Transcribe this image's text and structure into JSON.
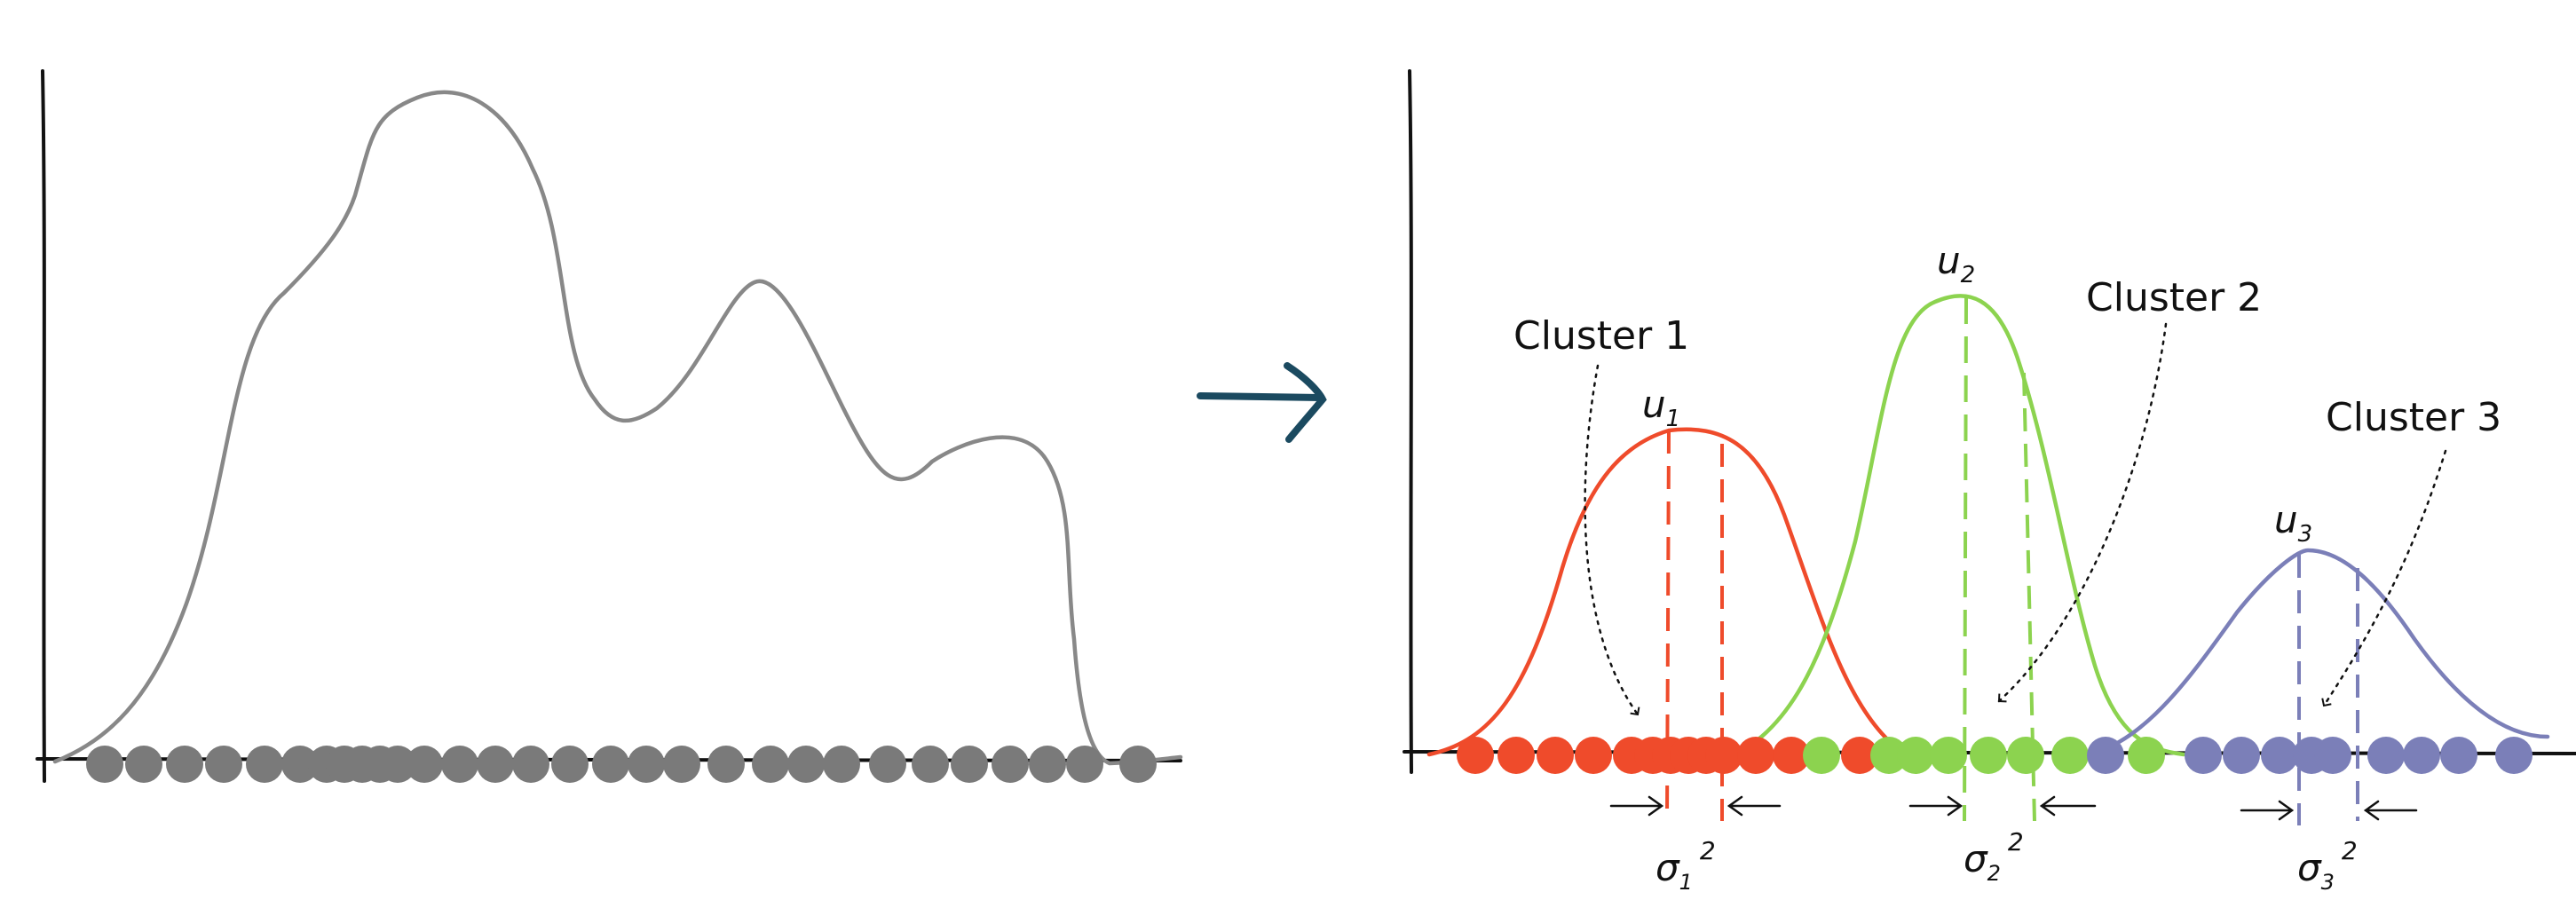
{
  "colors": {
    "axis": "#111111",
    "density": "#888888",
    "points": "#7a7a7a",
    "arrow": "#1b4a60",
    "cluster1": "#ef4b2b",
    "cluster2": "#8cd34f",
    "cluster3": "#7b7fb8"
  },
  "clusters": [
    {
      "label": "Cluster 1",
      "mean_symbol": "u",
      "mean_sub": "1",
      "var_symbol": "σ",
      "var_sub": "1",
      "var_sup": "2"
    },
    {
      "label": "Cluster 2",
      "mean_symbol": "u",
      "mean_sub": "2",
      "var_symbol": "σ",
      "var_sub": "2",
      "var_sup": "2"
    },
    {
      "label": "Cluster 3",
      "mean_symbol": "u",
      "mean_sub": "3",
      "var_symbol": "σ",
      "var_sub": "3",
      "var_sup": "2"
    }
  ]
}
